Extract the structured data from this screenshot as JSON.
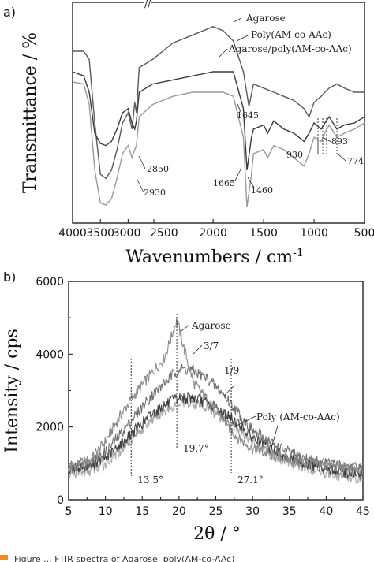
{
  "caption": {
    "text": "Figure ... FTIR spectra of Agarose, poly(AM-co-AAc)",
    "accent_color": "#f08a24"
  },
  "chart_data": [
    {
      "id": "a",
      "panel_label": "a)",
      "type": "line",
      "xlabel_main": "Wavenumbers / cm",
      "xlabel_sup": "-1",
      "ylabel": "Transmittance / %",
      "x_ticks": [
        4000,
        3500,
        3000,
        2500,
        2000,
        1500,
        1000,
        500
      ],
      "x_tick_labels": [
        "4000",
        "3500",
        "3000",
        "2500",
        "2000",
        "1500",
        "1000",
        "500"
      ],
      "break_label": "//",
      "series": [
        {
          "name": "Agarose",
          "color": "#5a5a5a",
          "points": [
            [
              4000,
              20
            ],
            [
              3800,
              20
            ],
            [
              3700,
              24
            ],
            [
              3600,
              55
            ],
            [
              3500,
              80
            ],
            [
              3400,
              82
            ],
            [
              3300,
              78
            ],
            [
              3200,
              68
            ],
            [
              3100,
              55
            ],
            [
              3000,
              50
            ],
            [
              2930,
              58
            ],
            [
              2880,
              45
            ],
            [
              2850,
              50
            ],
            [
              2800,
              28
            ],
            [
              2600,
              24
            ],
            [
              2400,
              16
            ],
            [
              2200,
              12
            ],
            [
              2000,
              8
            ],
            [
              1900,
              10
            ],
            [
              1800,
              15
            ],
            [
              1700,
              30
            ],
            [
              1645,
              47
            ],
            [
              1600,
              36
            ],
            [
              1500,
              38
            ],
            [
              1400,
              40
            ],
            [
              1300,
              42
            ],
            [
              1200,
              44
            ],
            [
              1100,
              48
            ],
            [
              1050,
              52
            ],
            [
              1000,
              45
            ],
            [
              930,
              42
            ],
            [
              893,
              40
            ],
            [
              850,
              38
            ],
            [
              774,
              36
            ],
            [
              700,
              38
            ],
            [
              600,
              40
            ],
            [
              500,
              40
            ]
          ]
        },
        {
          "name": "Poly(AM-co-AAc)",
          "color": "#3a3a3a",
          "points": [
            [
              4000,
              30
            ],
            [
              3800,
              32
            ],
            [
              3700,
              40
            ],
            [
              3600,
              60
            ],
            [
              3500,
              65
            ],
            [
              3400,
              66
            ],
            [
              3300,
              64
            ],
            [
              3200,
              58
            ],
            [
              3100,
              50
            ],
            [
              3000,
              48
            ],
            [
              2930,
              55
            ],
            [
              2880,
              58
            ],
            [
              2850,
              54
            ],
            [
              2800,
              40
            ],
            [
              2600,
              36
            ],
            [
              2400,
              34
            ],
            [
              2200,
              32
            ],
            [
              2000,
              30
            ],
            [
              1900,
              30
            ],
            [
              1800,
              30
            ],
            [
              1700,
              48
            ],
            [
              1665,
              78
            ],
            [
              1620,
              62
            ],
            [
              1600,
              58
            ],
            [
              1500,
              56
            ],
            [
              1460,
              60
            ],
            [
              1400,
              54
            ],
            [
              1300,
              58
            ],
            [
              1200,
              60
            ],
            [
              1100,
              64
            ],
            [
              1050,
              60
            ],
            [
              1000,
              55
            ],
            [
              930,
              58
            ],
            [
              893,
              55
            ],
            [
              850,
              52
            ],
            [
              774,
              58
            ],
            [
              700,
              56
            ],
            [
              600,
              55
            ],
            [
              500,
              52
            ]
          ]
        },
        {
          "name": "Agarose/poly(AM-co-AAc)",
          "color": "#9a9a9a",
          "points": [
            [
              4000,
              35
            ],
            [
              3800,
              36
            ],
            [
              3700,
              46
            ],
            [
              3600,
              78
            ],
            [
              3500,
              94
            ],
            [
              3400,
              95
            ],
            [
              3300,
              92
            ],
            [
              3200,
              82
            ],
            [
              3100,
              70
            ],
            [
              3000,
              66
            ],
            [
              2930,
              72
            ],
            [
              2880,
              68
            ],
            [
              2850,
              66
            ],
            [
              2800,
              52
            ],
            [
              2600,
              46
            ],
            [
              2400,
              42
            ],
            [
              2200,
              40
            ],
            [
              2000,
              40
            ],
            [
              1900,
              40
            ],
            [
              1800,
              42
            ],
            [
              1700,
              62
            ],
            [
              1665,
              96
            ],
            [
              1620,
              80
            ],
            [
              1600,
              70
            ],
            [
              1500,
              68
            ],
            [
              1460,
              72
            ],
            [
              1400,
              66
            ],
            [
              1300,
              68
            ],
            [
              1200,
              72
            ],
            [
              1100,
              76
            ],
            [
              1050,
              70
            ],
            [
              1000,
              62
            ],
            [
              930,
              64
            ],
            [
              893,
              60
            ],
            [
              850,
              56
            ],
            [
              774,
              62
            ],
            [
              700,
              60
            ],
            [
              600,
              58
            ],
            [
              500,
              55
            ]
          ]
        }
      ],
      "annotations": [
        "2850",
        "2930",
        "1645",
        "1665",
        "1460",
        "930",
        "893",
        "774"
      ]
    },
    {
      "id": "b",
      "panel_label": "b)",
      "type": "line",
      "xlabel": "2θ / °",
      "ylabel": "Intensity / cps",
      "xlim": [
        5,
        45
      ],
      "ylim": [
        0,
        6000
      ],
      "x_ticks": [
        5,
        10,
        15,
        20,
        25,
        30,
        35,
        40,
        45
      ],
      "x_tick_labels": [
        "5",
        "10",
        "15",
        "20",
        "25",
        "30",
        "35",
        "40",
        "45"
      ],
      "y_ticks": [
        0,
        2000,
        4000,
        6000
      ],
      "y_tick_labels": [
        "0",
        "2000",
        "4000",
        "6000"
      ],
      "series": [
        {
          "name": "Agarose",
          "color": "#8a8a8a",
          "points": [
            [
              5,
              900
            ],
            [
              8,
              1100
            ],
            [
              10,
              1600
            ],
            [
              12,
              2300
            ],
            [
              14,
              2900
            ],
            [
              16,
              3400
            ],
            [
              18,
              3900
            ],
            [
              19,
              4500
            ],
            [
              19.7,
              4950
            ],
            [
              20.5,
              4300
            ],
            [
              22,
              3200
            ],
            [
              24,
              2700
            ],
            [
              26,
              2200
            ],
            [
              28,
              1700
            ],
            [
              30,
              1400
            ],
            [
              33,
              1200
            ],
            [
              36,
              1050
            ],
            [
              40,
              950
            ],
            [
              45,
              800
            ]
          ]
        },
        {
          "name": "3/7",
          "color": "#707070",
          "points": [
            [
              5,
              900
            ],
            [
              8,
              1000
            ],
            [
              10,
              1300
            ],
            [
              12,
              1800
            ],
            [
              14,
              2300
            ],
            [
              16,
              2800
            ],
            [
              18,
              3200
            ],
            [
              20,
              3600
            ],
            [
              22,
              3550
            ],
            [
              24,
              3300
            ],
            [
              26,
              2900
            ],
            [
              28,
              2400
            ],
            [
              30,
              1900
            ],
            [
              33,
              1500
            ],
            [
              36,
              1200
            ],
            [
              40,
              1000
            ],
            [
              45,
              850
            ]
          ]
        },
        {
          "name": "1/9",
          "color": "#404040",
          "points": [
            [
              5,
              850
            ],
            [
              8,
              950
            ],
            [
              10,
              1150
            ],
            [
              12,
              1500
            ],
            [
              14,
              1900
            ],
            [
              16,
              2300
            ],
            [
              18,
              2600
            ],
            [
              20,
              2800
            ],
            [
              22,
              2800
            ],
            [
              24,
              2650
            ],
            [
              26,
              2400
            ],
            [
              28,
              2100
            ],
            [
              30,
              1700
            ],
            [
              33,
              1350
            ],
            [
              36,
              1050
            ],
            [
              40,
              850
            ],
            [
              45,
              650
            ]
          ]
        },
        {
          "name": "Poly (AM-co-AAc)",
          "color": "#a8a8a8",
          "points": [
            [
              5,
              700
            ],
            [
              8,
              800
            ],
            [
              10,
              1000
            ],
            [
              12,
              1350
            ],
            [
              14,
              1750
            ],
            [
              16,
              2150
            ],
            [
              18,
              2450
            ],
            [
              20,
              2650
            ],
            [
              22,
              2650
            ],
            [
              24,
              2500
            ],
            [
              26,
              2250
            ],
            [
              28,
              1950
            ],
            [
              30,
              1550
            ],
            [
              33,
              1200
            ],
            [
              36,
              950
            ],
            [
              40,
              750
            ],
            [
              45,
              550
            ]
          ]
        }
      ],
      "guides": [
        {
          "x": 13.5,
          "label": "13.5°"
        },
        {
          "x": 19.7,
          "label": "19.7°"
        },
        {
          "x": 27.1,
          "label": "27.1°"
        }
      ]
    }
  ]
}
